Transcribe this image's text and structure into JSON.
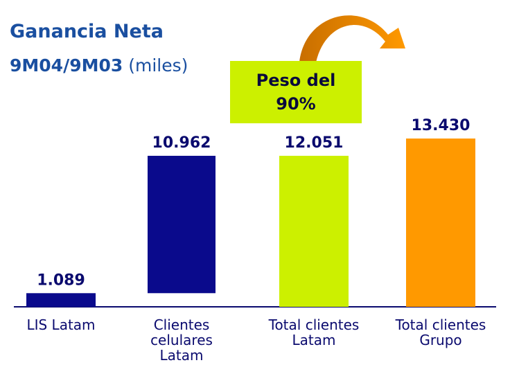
{
  "chart_data": {
    "type": "waterfall",
    "title": "Ganancia Neta",
    "subtitle": "9M04/9M03",
    "unit_note": "(miles)",
    "annotation": "Peso del 90%",
    "categories": [
      "LIS Latam",
      "Clientes celulares Latam",
      "Total clientes Latam",
      "Total clientes Grupo"
    ],
    "values": [
      1089,
      10962,
      12051,
      13430
    ],
    "value_labels": [
      "1.089",
      "10.962",
      "12.051",
      "13.430"
    ],
    "measure": [
      "absolute",
      "relative",
      "total",
      "absolute"
    ],
    "colors": [
      "#0a0a8c",
      "#0a0a8c",
      "#ccf000",
      "#ff9900"
    ]
  }
}
